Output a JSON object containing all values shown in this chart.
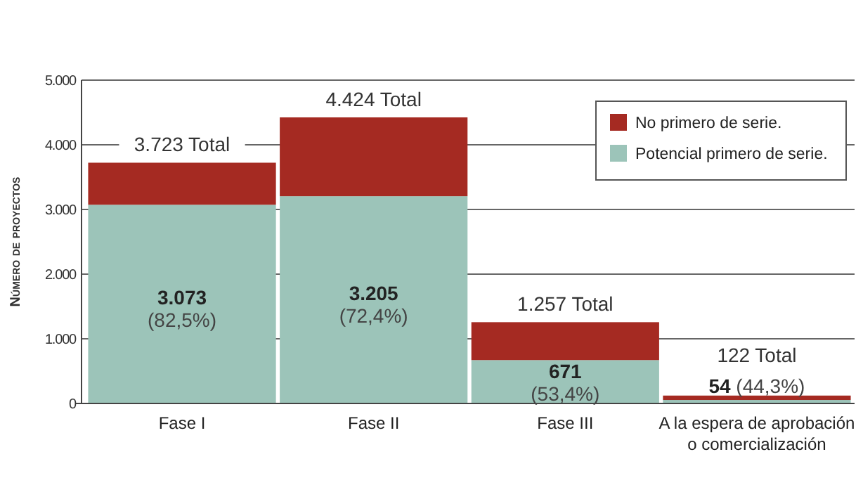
{
  "chart_data": {
    "type": "bar",
    "ylabel": "Número de proyectos",
    "categories": [
      "Fase I",
      "Fase II",
      "Fase III",
      "A la espera de aprobación o comercialización"
    ],
    "series": [
      {
        "name": "Potencial primero de serie.",
        "color": "#9cc4b9",
        "values": [
          3073,
          3205,
          671,
          54
        ],
        "value_labels": [
          "3.073 (82,5%)",
          "3.205 (72,4%)",
          "671 (53,4%)",
          "54 (44,3%)"
        ]
      },
      {
        "name": "No primero de serie.",
        "color": "#a52a22",
        "values": [
          650,
          1219,
          586,
          68
        ]
      }
    ],
    "stacked": true,
    "totals": [
      "3.723 Total",
      "4.424 Total",
      "1.257 Total",
      "122 Total"
    ],
    "ylim": [
      0,
      5000
    ],
    "yticks": [
      {
        "value": 0,
        "label": "0"
      },
      {
        "value": 1000,
        "label": "1.000"
      },
      {
        "value": 2000,
        "label": "2.000"
      },
      {
        "value": 3000,
        "label": "3.000"
      },
      {
        "value": 4000,
        "label": "4.000"
      },
      {
        "value": 5000,
        "label": "5.000"
      }
    ],
    "grid": "y",
    "legend": "top right"
  }
}
